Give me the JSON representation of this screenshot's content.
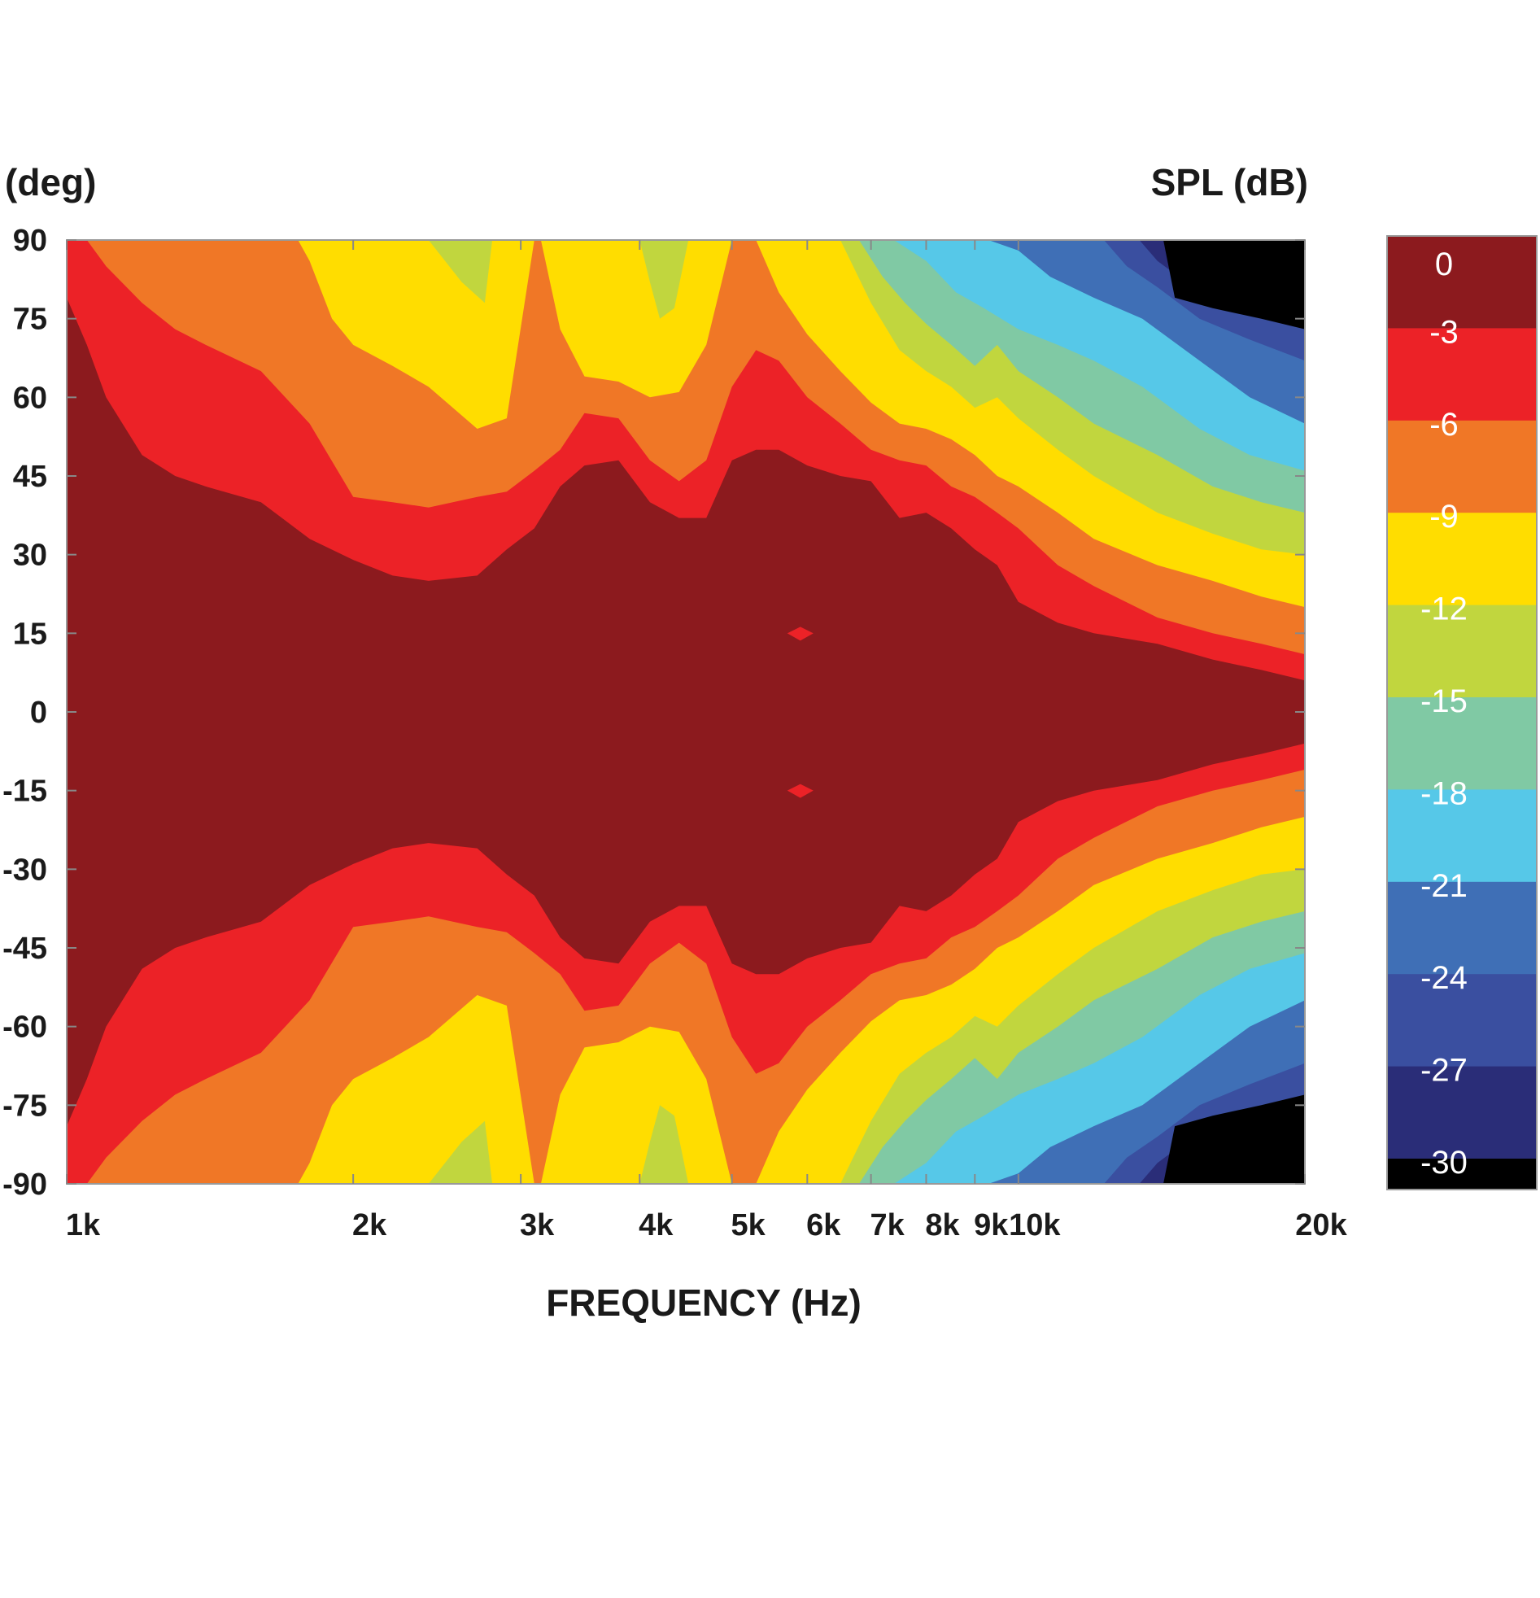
{
  "chart_data": {
    "type": "heatmap",
    "subtype": "filled-contour",
    "xlabel": "FREQUENCY (Hz)",
    "ylabel": "(deg)",
    "colorbar_label": "SPL (dB)",
    "x_scale": "log",
    "xlim": [
      1000,
      20000
    ],
    "ylim": [
      -90,
      90
    ],
    "x_ticks": [
      {
        "value": 1000,
        "label": "1k"
      },
      {
        "value": 2000,
        "label": "2k"
      },
      {
        "value": 3000,
        "label": "3k"
      },
      {
        "value": 4000,
        "label": "4k"
      },
      {
        "value": 5000,
        "label": "5k"
      },
      {
        "value": 6000,
        "label": "6k"
      },
      {
        "value": 7000,
        "label": "7k"
      },
      {
        "value": 8000,
        "label": "8k"
      },
      {
        "value": 9000,
        "label": "9k"
      },
      {
        "value": 10000,
        "label": "10k"
      },
      {
        "value": 20000,
        "label": "20k"
      }
    ],
    "y_ticks": [
      {
        "value": 90,
        "label": "90"
      },
      {
        "value": 75,
        "label": "75"
      },
      {
        "value": 60,
        "label": "60"
      },
      {
        "value": 45,
        "label": "45"
      },
      {
        "value": 30,
        "label": "30"
      },
      {
        "value": 15,
        "label": "15"
      },
      {
        "value": 0,
        "label": "0"
      },
      {
        "value": -15,
        "label": "-15"
      },
      {
        "value": -30,
        "label": "-30"
      },
      {
        "value": -45,
        "label": "-45"
      },
      {
        "value": -60,
        "label": "-60"
      },
      {
        "value": -75,
        "label": "-75"
      },
      {
        "value": -90,
        "label": "-90"
      }
    ],
    "colorbar": [
      {
        "label": "0",
        "color": "#8c1a1e"
      },
      {
        "label": "-3",
        "color": "#ec2227"
      },
      {
        "label": "-6",
        "color": "#f07726"
      },
      {
        "label": "-9",
        "color": "#ffdd00"
      },
      {
        "label": "-12",
        "color": "#c1d63e"
      },
      {
        "label": "-15",
        "color": "#80c9a4"
      },
      {
        "label": "-18",
        "color": "#56c8e8"
      },
      {
        "label": "-21",
        "color": "#3f6fb6"
      },
      {
        "label": "-24",
        "color": "#3a4fa0"
      },
      {
        "label": "-27",
        "color": "#2a2d78"
      },
      {
        "label": "-30",
        "color": "#000000"
      }
    ],
    "contours": [
      {
        "level": -3,
        "points": [
          [
            1000,
            79
          ],
          [
            1050,
            70
          ],
          [
            1100,
            60
          ],
          [
            1200,
            49
          ],
          [
            1300,
            45
          ],
          [
            1400,
            43
          ],
          [
            1600,
            40
          ],
          [
            1800,
            33
          ],
          [
            2000,
            29
          ],
          [
            2200,
            26
          ],
          [
            2400,
            25
          ],
          [
            2700,
            26
          ],
          [
            2900,
            31
          ],
          [
            3100,
            35
          ],
          [
            3300,
            43
          ],
          [
            3500,
            47
          ],
          [
            3800,
            48
          ],
          [
            4100,
            40
          ],
          [
            4400,
            37
          ],
          [
            4700,
            37
          ],
          [
            5000,
            48
          ],
          [
            5300,
            50
          ],
          [
            5600,
            50
          ],
          [
            6000,
            47
          ],
          [
            6500,
            45
          ],
          [
            7000,
            44
          ],
          [
            7500,
            37
          ],
          [
            8000,
            38
          ],
          [
            8500,
            35
          ],
          [
            9000,
            31
          ],
          [
            9500,
            28
          ],
          [
            10000,
            21
          ],
          [
            11000,
            17
          ],
          [
            12000,
            15
          ],
          [
            14000,
            13
          ],
          [
            16000,
            10
          ],
          [
            18000,
            8
          ],
          [
            20000,
            6
          ]
        ]
      },
      {
        "level": -6,
        "points": [
          [
            1000,
            90
          ],
          [
            1050,
            90
          ],
          [
            1100,
            85
          ],
          [
            1200,
            78
          ],
          [
            1300,
            73
          ],
          [
            1400,
            70
          ],
          [
            1600,
            65
          ],
          [
            1800,
            55
          ],
          [
            2000,
            41
          ],
          [
            2200,
            40
          ],
          [
            2400,
            39
          ],
          [
            2700,
            41
          ],
          [
            2900,
            42
          ],
          [
            3100,
            46
          ],
          [
            3300,
            50
          ],
          [
            3500,
            57
          ],
          [
            3800,
            56
          ],
          [
            4100,
            48
          ],
          [
            4400,
            44
          ],
          [
            4700,
            48
          ],
          [
            5000,
            62
          ],
          [
            5300,
            69
          ],
          [
            5600,
            67
          ],
          [
            6000,
            60
          ],
          [
            6500,
            55
          ],
          [
            7000,
            50
          ],
          [
            7500,
            48
          ],
          [
            8000,
            47
          ],
          [
            8500,
            43
          ],
          [
            9000,
            41
          ],
          [
            9500,
            38
          ],
          [
            10000,
            35
          ],
          [
            11000,
            28
          ],
          [
            12000,
            24
          ],
          [
            14000,
            18
          ],
          [
            16000,
            15
          ],
          [
            18000,
            13
          ],
          [
            20000,
            11
          ]
        ]
      },
      {
        "level": -9,
        "points": [
          [
            1000,
            90
          ],
          [
            1750,
            90
          ],
          [
            1800,
            86
          ],
          [
            1900,
            75
          ],
          [
            2000,
            70
          ],
          [
            2200,
            66
          ],
          [
            2400,
            62
          ],
          [
            2700,
            54
          ],
          [
            2900,
            56
          ],
          [
            3100,
            90
          ],
          [
            3150,
            90
          ],
          [
            3300,
            73
          ],
          [
            3500,
            64
          ],
          [
            3800,
            63
          ],
          [
            4100,
            60
          ],
          [
            4400,
            61
          ],
          [
            4700,
            70
          ],
          [
            5000,
            90
          ],
          [
            5300,
            90
          ],
          [
            5600,
            80
          ],
          [
            6000,
            72
          ],
          [
            6500,
            65
          ],
          [
            7000,
            59
          ],
          [
            7500,
            55
          ],
          [
            8000,
            54
          ],
          [
            8500,
            52
          ],
          [
            9000,
            49
          ],
          [
            9500,
            45
          ],
          [
            10000,
            43
          ],
          [
            11000,
            38
          ],
          [
            12000,
            33
          ],
          [
            14000,
            28
          ],
          [
            16000,
            25
          ],
          [
            18000,
            22
          ],
          [
            20000,
            20
          ]
        ]
      },
      {
        "level": -12,
        "points": [
          [
            2200,
            90
          ],
          [
            2400,
            90
          ],
          [
            2600,
            82
          ],
          [
            2750,
            78
          ],
          [
            2800,
            90
          ],
          [
            4000,
            90
          ],
          [
            4100,
            82
          ],
          [
            4200,
            75
          ],
          [
            4350,
            77
          ],
          [
            4500,
            90
          ],
          [
            6500,
            90
          ],
          [
            7000,
            78
          ],
          [
            7500,
            69
          ],
          [
            8000,
            65
          ],
          [
            8500,
            62
          ],
          [
            9000,
            58
          ],
          [
            9500,
            60
          ],
          [
            10000,
            56
          ],
          [
            11000,
            50
          ],
          [
            12000,
            45
          ],
          [
            14000,
            38
          ],
          [
            16000,
            34
          ],
          [
            18000,
            31
          ],
          [
            20000,
            30
          ]
        ]
      },
      {
        "level": -15,
        "points": [
          [
            6800,
            90
          ],
          [
            7200,
            83
          ],
          [
            7600,
            78
          ],
          [
            8000,
            74
          ],
          [
            8500,
            70
          ],
          [
            9000,
            66
          ],
          [
            9500,
            70
          ],
          [
            10000,
            65
          ],
          [
            11000,
            60
          ],
          [
            12000,
            55
          ],
          [
            14000,
            49
          ],
          [
            16000,
            43
          ],
          [
            18000,
            40
          ],
          [
            20000,
            38
          ]
        ]
      },
      {
        "level": -18,
        "points": [
          [
            7400,
            90
          ],
          [
            8000,
            86
          ],
          [
            8600,
            80
          ],
          [
            9200,
            77
          ],
          [
            10000,
            73
          ],
          [
            11000,
            70
          ],
          [
            12000,
            67
          ],
          [
            13500,
            62
          ],
          [
            15500,
            54
          ],
          [
            17500,
            49
          ],
          [
            20000,
            46
          ]
        ]
      },
      {
        "level": -21,
        "points": [
          [
            9300,
            90
          ],
          [
            10000,
            88
          ],
          [
            10800,
            83
          ],
          [
            12000,
            79
          ],
          [
            13500,
            75
          ],
          [
            15500,
            67
          ],
          [
            17500,
            60
          ],
          [
            20000,
            55
          ]
        ]
      },
      {
        "level": -24,
        "points": [
          [
            12300,
            90
          ],
          [
            13000,
            85
          ],
          [
            14000,
            81
          ],
          [
            15500,
            75
          ],
          [
            17500,
            71
          ],
          [
            20000,
            67
          ]
        ]
      },
      {
        "level": -27,
        "points": [
          [
            13400,
            90
          ],
          [
            14000,
            86
          ],
          [
            15000,
            82
          ],
          [
            17000,
            78
          ],
          [
            20000,
            76
          ]
        ]
      },
      {
        "level": -30,
        "points": [
          [
            14200,
            90
          ],
          [
            14600,
            79
          ],
          [
            16000,
            77
          ],
          [
            18000,
            75
          ],
          [
            20000,
            73
          ]
        ]
      }
    ],
    "dips": [
      {
        "x": 5900,
        "y": 15,
        "level": -3
      },
      {
        "x": 5900,
        "y": -15,
        "level": -3
      }
    ],
    "symmetry": "mirrored about 0 deg"
  }
}
